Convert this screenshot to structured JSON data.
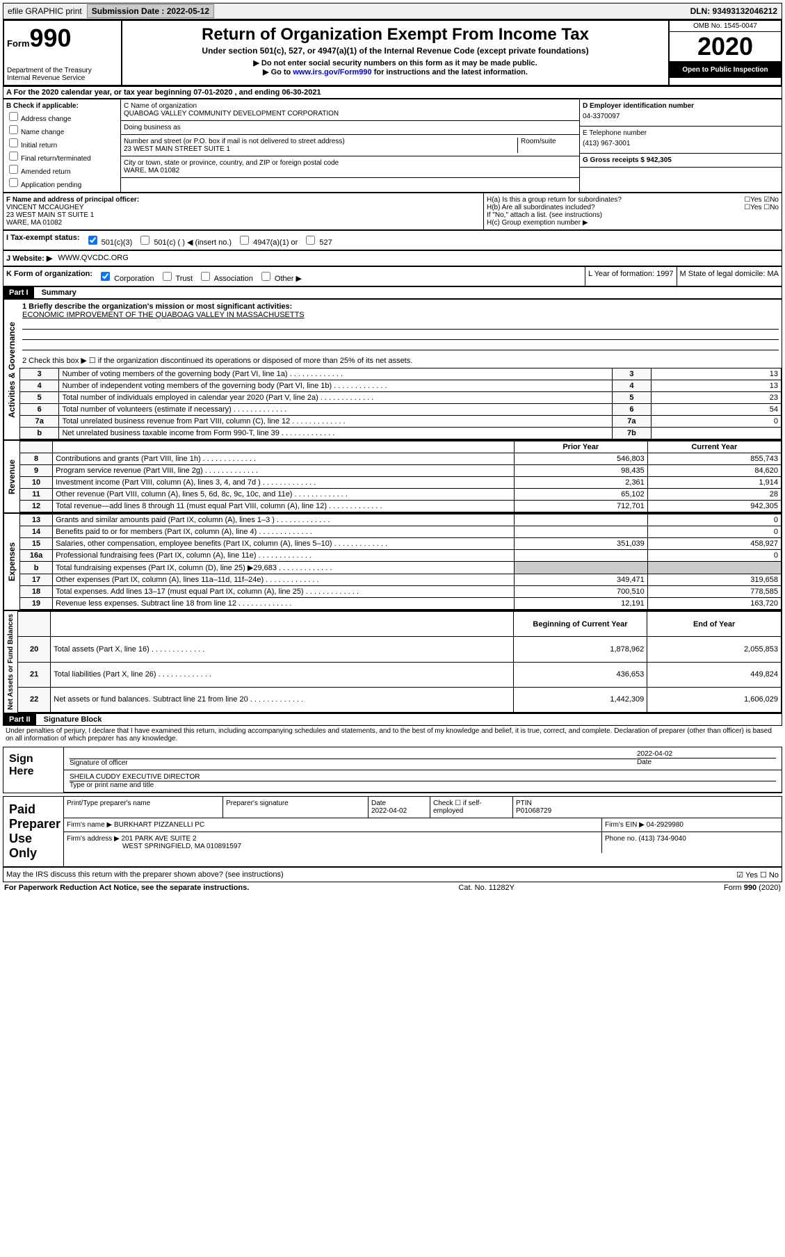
{
  "topbar": {
    "efile": "efile GRAPHIC print",
    "submission_label": "Submission Date : 2022-05-12",
    "dln": "DLN: 93493132046212"
  },
  "header": {
    "form_label": "Form",
    "form_num": "990",
    "dept": "Department of the Treasury\nInternal Revenue Service",
    "title": "Return of Organization Exempt From Income Tax",
    "subtitle": "Under section 501(c), 527, or 4947(a)(1) of the Internal Revenue Code (except private foundations)",
    "note1": "▶ Do not enter social security numbers on this form as it may be made public.",
    "note2_pre": "▶ Go to ",
    "note2_link": "www.irs.gov/Form990",
    "note2_post": " for instructions and the latest information.",
    "omb": "OMB No. 1545-0047",
    "year": "2020",
    "open": "Open to Public Inspection"
  },
  "rowA": "A For the 2020 calendar year, or tax year beginning 07-01-2020 , and ending 06-30-2021",
  "colB": {
    "title": "B Check if applicable:",
    "opts": [
      "Address change",
      "Name change",
      "Initial return",
      "Final return/terminated",
      "Amended return",
      "Application pending"
    ]
  },
  "colC": {
    "name_label": "C Name of organization",
    "name": "QUABOAG VALLEY COMMUNITY DEVELOPMENT CORPORATION",
    "dba_label": "Doing business as",
    "addr_label": "Number and street (or P.O. box if mail is not delivered to street address)",
    "addr": "23 WEST MAIN STREET SUITE 1",
    "room_label": "Room/suite",
    "city_label": "City or town, state or province, country, and ZIP or foreign postal code",
    "city": "WARE, MA  01082"
  },
  "colD": {
    "ein_label": "D Employer identification number",
    "ein": "04-3370097",
    "tel_label": "E Telephone number",
    "tel": "(413) 967-3001",
    "gross_label": "G Gross receipts $ 942,305"
  },
  "rowF": {
    "label": "F Name and address of principal officer:",
    "name": "VINCENT MCCAUGHEY",
    "addr": "23 WEST MAIN ST SUITE 1",
    "city": "WARE, MA  01082"
  },
  "rowH": {
    "ha": "H(a) Is this a group return for subordinates?",
    "hb": "H(b) Are all subordinates included?",
    "hb_note": "If \"No,\" attach a list. (see instructions)",
    "hc": "H(c) Group exemption number ▶"
  },
  "rowI": {
    "label": "I Tax-exempt status:",
    "opts": [
      "501(c)(3)",
      "501(c) ( ) ◀ (insert no.)",
      "4947(a)(1) or",
      "527"
    ]
  },
  "rowJ": {
    "label": "J Website: ▶",
    "value": "WWW.QVCDC.ORG"
  },
  "rowK": {
    "label": "K Form of organization:",
    "opts": [
      "Corporation",
      "Trust",
      "Association",
      "Other ▶"
    ],
    "year_label": "L Year of formation: 1997",
    "state_label": "M State of legal domicile: MA"
  },
  "part1": {
    "header": "Part I",
    "title": "Summary",
    "q1": "1 Briefly describe the organization's mission or most significant activities:",
    "mission": "ECONOMIC IMPROVEMENT OF THE QUABOAG VALLEY IN MASSACHUSETTS",
    "q2": "2 Check this box ▶ ☐ if the organization discontinued its operations or disposed of more than 25% of its net assets."
  },
  "governance_rows": [
    {
      "n": "3",
      "desc": "Number of voting members of the governing body (Part VI, line 1a)",
      "box": "3",
      "val": "13"
    },
    {
      "n": "4",
      "desc": "Number of independent voting members of the governing body (Part VI, line 1b)",
      "box": "4",
      "val": "13"
    },
    {
      "n": "5",
      "desc": "Total number of individuals employed in calendar year 2020 (Part V, line 2a)",
      "box": "5",
      "val": "23"
    },
    {
      "n": "6",
      "desc": "Total number of volunteers (estimate if necessary)",
      "box": "6",
      "val": "54"
    },
    {
      "n": "7a",
      "desc": "Total unrelated business revenue from Part VIII, column (C), line 12",
      "box": "7a",
      "val": "0"
    },
    {
      "n": "b",
      "desc": "Net unrelated business taxable income from Form 990-T, line 39",
      "box": "7b",
      "val": ""
    }
  ],
  "two_col_headers": {
    "prior": "Prior Year",
    "current": "Current Year"
  },
  "revenue_rows": [
    {
      "n": "8",
      "desc": "Contributions and grants (Part VIII, line 1h)",
      "prior": "546,803",
      "current": "855,743"
    },
    {
      "n": "9",
      "desc": "Program service revenue (Part VIII, line 2g)",
      "prior": "98,435",
      "current": "84,620"
    },
    {
      "n": "10",
      "desc": "Investment income (Part VIII, column (A), lines 3, 4, and 7d )",
      "prior": "2,361",
      "current": "1,914"
    },
    {
      "n": "11",
      "desc": "Other revenue (Part VIII, column (A), lines 5, 6d, 8c, 9c, 10c, and 11e)",
      "prior": "65,102",
      "current": "28"
    },
    {
      "n": "12",
      "desc": "Total revenue—add lines 8 through 11 (must equal Part VIII, column (A), line 12)",
      "prior": "712,701",
      "current": "942,305"
    }
  ],
  "expense_rows": [
    {
      "n": "13",
      "desc": "Grants and similar amounts paid (Part IX, column (A), lines 1–3 )",
      "prior": "",
      "current": "0"
    },
    {
      "n": "14",
      "desc": "Benefits paid to or for members (Part IX, column (A), line 4)",
      "prior": "",
      "current": "0"
    },
    {
      "n": "15",
      "desc": "Salaries, other compensation, employee benefits (Part IX, column (A), lines 5–10)",
      "prior": "351,039",
      "current": "458,927"
    },
    {
      "n": "16a",
      "desc": "Professional fundraising fees (Part IX, column (A), line 11e)",
      "prior": "",
      "current": "0"
    },
    {
      "n": "b",
      "desc": "Total fundraising expenses (Part IX, column (D), line 25) ▶29,683",
      "prior": "",
      "current": ""
    },
    {
      "n": "17",
      "desc": "Other expenses (Part IX, column (A), lines 11a–11d, 11f–24e)",
      "prior": "349,471",
      "current": "319,658"
    },
    {
      "n": "18",
      "desc": "Total expenses. Add lines 13–17 (must equal Part IX, column (A), line 25)",
      "prior": "700,510",
      "current": "778,585"
    },
    {
      "n": "19",
      "desc": "Revenue less expenses. Subtract line 18 from line 12",
      "prior": "12,191",
      "current": "163,720"
    }
  ],
  "net_headers": {
    "begin": "Beginning of Current Year",
    "end": "End of Year"
  },
  "net_rows": [
    {
      "n": "20",
      "desc": "Total assets (Part X, line 16)",
      "prior": "1,878,962",
      "current": "2,055,853"
    },
    {
      "n": "21",
      "desc": "Total liabilities (Part X, line 26)",
      "prior": "436,653",
      "current": "449,824"
    },
    {
      "n": "22",
      "desc": "Net assets or fund balances. Subtract line 21 from line 20",
      "prior": "1,442,309",
      "current": "1,606,029"
    }
  ],
  "part2": {
    "header": "Part II",
    "title": "Signature Block",
    "perjury": "Under penalties of perjury, I declare that I have examined this return, including accompanying schedules and statements, and to the best of my knowledge and belief, it is true, correct, and complete. Declaration of preparer (other than officer) is based on all information of which preparer has any knowledge."
  },
  "sign": {
    "label": "Sign Here",
    "sig_label": "Signature of officer",
    "date": "2022-04-02",
    "date_label": "Date",
    "name": "SHEILA CUDDY EXECUTIVE DIRECTOR",
    "name_label": "Type or print name and title"
  },
  "preparer": {
    "label": "Paid Preparer Use Only",
    "name_label": "Print/Type preparer's name",
    "sig_label": "Preparer's signature",
    "date_label": "Date",
    "date": "2022-04-02",
    "check_label": "Check ☐ if self-employed",
    "ptin_label": "PTIN",
    "ptin": "P01068729",
    "firm_label": "Firm's name ▶",
    "firm": "BURKHART PIZZANELLI PC",
    "ein_label": "Firm's EIN ▶",
    "ein": "04-2929980",
    "addr_label": "Firm's address ▶",
    "addr": "201 PARK AVE SUITE 2",
    "addr2": "WEST SPRINGFIELD, MA  010891597",
    "phone_label": "Phone no.",
    "phone": "(413) 734-9040"
  },
  "discuss": "May the IRS discuss this return with the preparer shown above? (see instructions)",
  "footer": {
    "left": "For Paperwork Reduction Act Notice, see the separate instructions.",
    "mid": "Cat. No. 11282Y",
    "right": "Form 990 (2020)"
  },
  "vert_labels": {
    "gov": "Activities & Governance",
    "rev": "Revenue",
    "exp": "Expenses",
    "net": "Net Assets or Fund Balances"
  }
}
